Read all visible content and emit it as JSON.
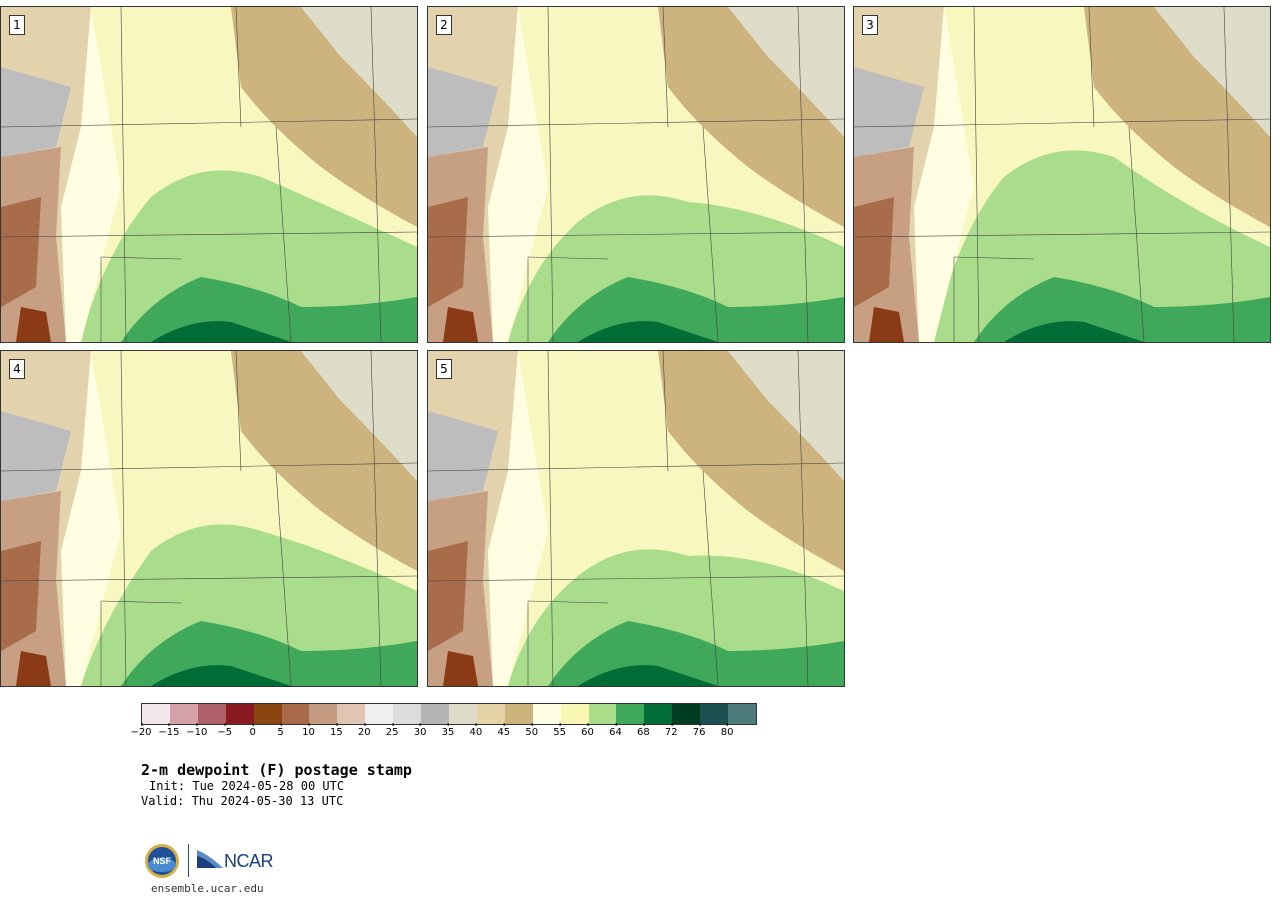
{
  "panels": [
    {
      "label": "1"
    },
    {
      "label": "2"
    },
    {
      "label": "3"
    },
    {
      "label": "4"
    },
    {
      "label": "5"
    }
  ],
  "colorbar": {
    "colors": [
      "#f2e8e9",
      "#d4a1a8",
      "#b06068",
      "#8a1a22",
      "#8b4513",
      "#a86a48",
      "#c49a80",
      "#e0c4b4",
      "#efefef",
      "#dcdcdc",
      "#b4b4b4",
      "#dedcc8",
      "#e4d4a8",
      "#ccb47c",
      "#fffde4",
      "#f8f8b4",
      "#aadd8a",
      "#40a85a",
      "#006c36",
      "#003c22",
      "#1c5050",
      "#4e7c7c"
    ],
    "ticks": [
      "−20",
      "−15",
      "−10",
      "−5",
      "0",
      "5",
      "10",
      "15",
      "20",
      "25",
      "30",
      "35",
      "40",
      "45",
      "50",
      "55",
      "60",
      "64",
      "68",
      "72",
      "76",
      "80"
    ]
  },
  "title": "2-m dewpoint (F) postage stamp",
  "init": "Init: Tue 2024-05-28 00 UTC",
  "valid": "Valid: Thu 2024-05-30 13 UTC",
  "logos": {
    "ncar_text": "NCAR"
  },
  "url": "ensemble.ucar.edu"
}
